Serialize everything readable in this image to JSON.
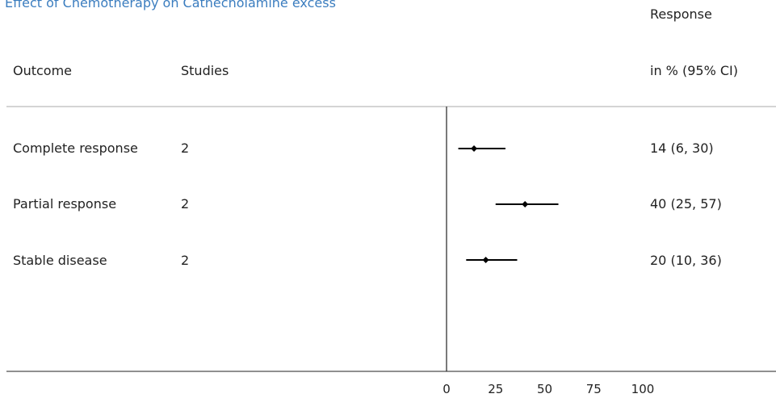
{
  "chart_data": {
    "type": "forest",
    "title": "Effect of Chemotherapy on Cathecholamine excess",
    "columns": {
      "outcome": "Outcome",
      "studies": "Studies",
      "response_line1": "Response",
      "response_line2": "in % (95% CI)"
    },
    "xlim": [
      0,
      100
    ],
    "x_ticks": [
      0,
      25,
      50,
      75,
      100
    ],
    "x_tick_labels": [
      "0",
      "25",
      "50",
      "75",
      "100"
    ],
    "rows": [
      {
        "outcome": "Complete response",
        "studies": "2",
        "estimate": 14,
        "lower": 6,
        "upper": 30,
        "ci_text": "14 (6, 30)"
      },
      {
        "outcome": "Partial response",
        "studies": "2",
        "estimate": 40,
        "lower": 25,
        "upper": 57,
        "ci_text": "40 (25, 57)"
      },
      {
        "outcome": "Stable disease",
        "studies": "2",
        "estimate": 20,
        "lower": 10,
        "upper": 36,
        "ci_text": "20 (10, 36)"
      }
    ],
    "colors": {
      "title": "#3b7dbf",
      "marks": "#000000",
      "rule": "#aaaaaa"
    }
  }
}
